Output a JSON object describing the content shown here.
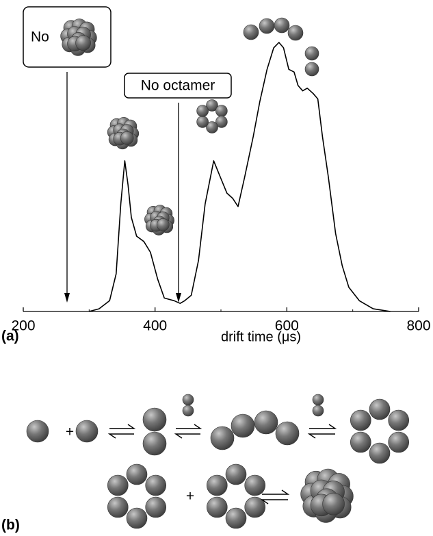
{
  "chart_data": {
    "type": "line",
    "x_label": "drift time (μs)",
    "xlim": [
      200,
      800
    ],
    "xticks": [
      200,
      400,
      600,
      800
    ],
    "ylim": [
      0,
      100
    ],
    "x": [
      300,
      315,
      331,
      341,
      348,
      354,
      359,
      364,
      372,
      383,
      393,
      404,
      414,
      429,
      438,
      445,
      455,
      466,
      476,
      489,
      499,
      509,
      518,
      526,
      536,
      549,
      559,
      570,
      580,
      588,
      595,
      603,
      611,
      617,
      624,
      631,
      640,
      647,
      654,
      663,
      674,
      684,
      694,
      710,
      731,
      757
    ],
    "series": [
      {
        "color": "#000000",
        "values": [
          0,
          1,
          4,
          14,
          40,
          56,
          47,
          35,
          28,
          26,
          22,
          12,
          5,
          4,
          3,
          4,
          6,
          19,
          40,
          56,
          50,
          44,
          42,
          39,
          50,
          65,
          78,
          90,
          98,
          100,
          98,
          90,
          89,
          84,
          82,
          83,
          81,
          79,
          65,
          50,
          29,
          17,
          9,
          4,
          1,
          0
        ]
      }
    ],
    "annotations": [
      "No",
      "No octamer"
    ],
    "panel_labels": [
      "(a)",
      "(b)"
    ],
    "plus_signs": [
      "+",
      "+"
    ]
  }
}
